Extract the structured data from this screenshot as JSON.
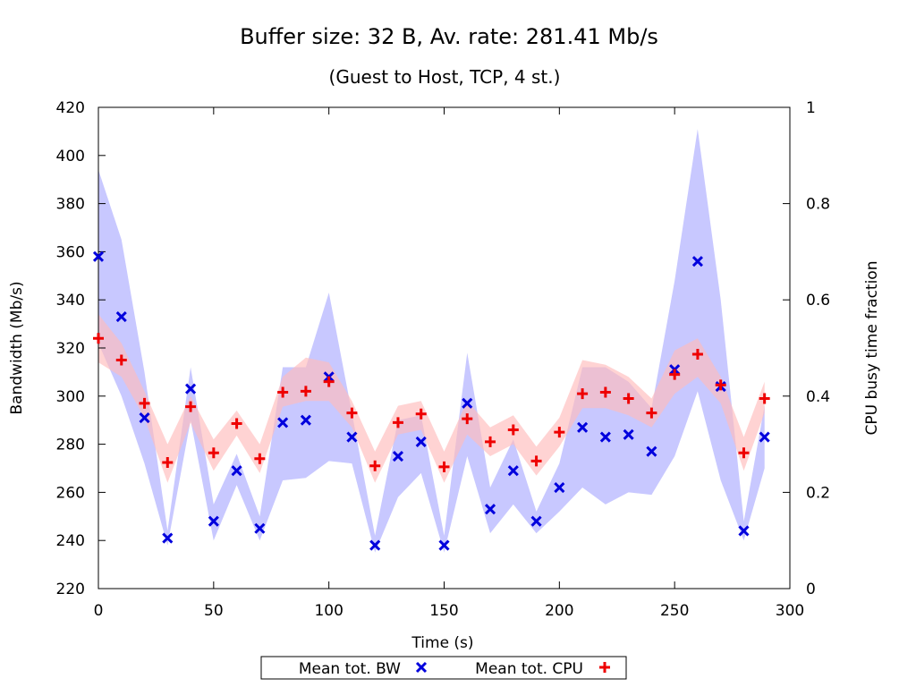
{
  "chart_data": {
    "type": "scatter",
    "title": "Buffer size: 32 B, Av. rate: 281.41 Mb/s",
    "subtitle": "(Guest to Host, TCP, 4 st.)",
    "xlabel": "Time (s)",
    "ylabel": "Bandwidth (Mb/s)",
    "y2label": "CPU busy time fraction",
    "xlim": [
      0,
      300
    ],
    "ylim": [
      220,
      420
    ],
    "y2lim": [
      0,
      1
    ],
    "xticks": [
      "0",
      "50",
      "100",
      "150",
      "200",
      "250",
      "300"
    ],
    "yticks": [
      "220",
      "240",
      "260",
      "280",
      "300",
      "320",
      "340",
      "360",
      "380",
      "400",
      "420"
    ],
    "y2ticks": [
      "0",
      "0.2",
      "0.4",
      "0.6",
      "0.8",
      "1"
    ],
    "grid": false,
    "legend_position": "bottom-center",
    "series": [
      {
        "name": "Mean tot. BW",
        "axis": "left",
        "marker": "x",
        "color": "#0000dd",
        "band_color": "#c8c8ff",
        "x": [
          0,
          10,
          20,
          30,
          40,
          50,
          60,
          70,
          80,
          90,
          100,
          110,
          120,
          130,
          140,
          150,
          160,
          170,
          180,
          190,
          200,
          210,
          220,
          230,
          240,
          250,
          260,
          270,
          280,
          289
        ],
        "values": [
          358,
          333,
          291,
          241,
          303,
          248,
          269,
          245,
          289,
          290,
          308,
          283,
          238,
          275,
          281,
          238,
          297,
          253,
          269,
          248,
          262,
          287,
          283,
          284,
          277,
          311,
          356,
          304,
          244,
          283
        ],
        "band_low": [
          322,
          300,
          272,
          238,
          290,
          240,
          263,
          240,
          265,
          266,
          273,
          272,
          235,
          258,
          268,
          235,
          275,
          243,
          255,
          243,
          252,
          262,
          255,
          260,
          259,
          275,
          302,
          265,
          240,
          270
        ],
        "band_high": [
          394,
          365,
          310,
          244,
          312,
          255,
          276,
          250,
          312,
          312,
          343,
          293,
          242,
          290,
          292,
          242,
          318,
          262,
          282,
          252,
          272,
          312,
          312,
          306,
          295,
          348,
          411,
          340,
          248,
          296
        ]
      },
      {
        "name": "Mean tot. CPU",
        "axis": "right",
        "marker": "+",
        "color": "#ee0000",
        "band_color": "#ffbbbb",
        "x": [
          0,
          10,
          20,
          30,
          40,
          50,
          60,
          70,
          80,
          90,
          100,
          110,
          120,
          130,
          140,
          150,
          160,
          170,
          180,
          190,
          200,
          210,
          220,
          230,
          240,
          250,
          260,
          270,
          280,
          289
        ],
        "values": [
          0.52,
          0.475,
          0.385,
          0.262,
          0.378,
          0.282,
          0.343,
          0.27,
          0.408,
          0.41,
          0.43,
          0.365,
          0.255,
          0.345,
          0.363,
          0.253,
          0.353,
          0.305,
          0.33,
          0.265,
          0.325,
          0.405,
          0.408,
          0.395,
          0.365,
          0.445,
          0.487,
          0.423,
          0.282,
          0.395
        ],
        "band_low": [
          0.47,
          0.44,
          0.355,
          0.22,
          0.345,
          0.245,
          0.318,
          0.24,
          0.378,
          0.39,
          0.39,
          0.335,
          0.22,
          0.32,
          0.33,
          0.22,
          0.32,
          0.275,
          0.3,
          0.235,
          0.295,
          0.375,
          0.375,
          0.36,
          0.335,
          0.405,
          0.44,
          0.385,
          0.245,
          0.365
        ],
        "band_high": [
          0.57,
          0.51,
          0.41,
          0.3,
          0.4,
          0.31,
          0.37,
          0.3,
          0.44,
          0.48,
          0.47,
          0.39,
          0.285,
          0.38,
          0.39,
          0.285,
          0.39,
          0.335,
          0.36,
          0.295,
          0.355,
          0.475,
          0.465,
          0.44,
          0.395,
          0.495,
          0.52,
          0.44,
          0.315,
          0.43
        ]
      }
    ]
  }
}
